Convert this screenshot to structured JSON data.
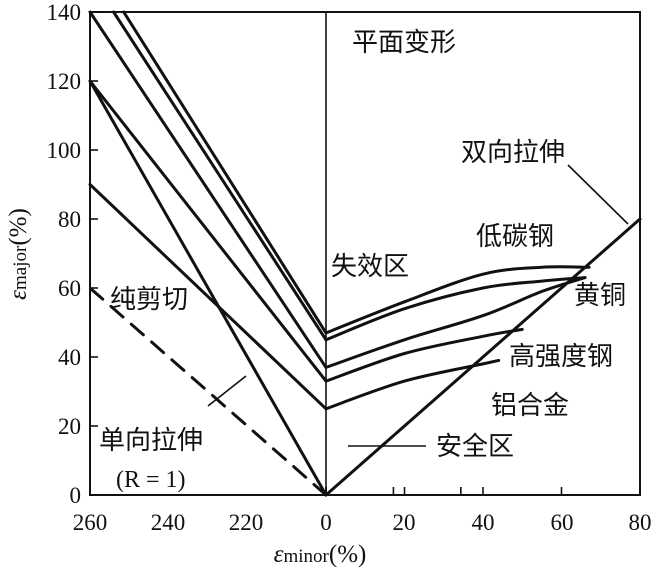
{
  "chart_data": {
    "type": "line",
    "title": "",
    "xlabel": "εminor(%)",
    "ylabel": "εmajor(%)",
    "x_ticks_left": [
      "260",
      "240",
      "220",
      "0"
    ],
    "x_ticks_right": [
      "20",
      "40",
      "60",
      "80"
    ],
    "y_ticks": [
      "0",
      "20",
      "40",
      "60",
      "80",
      "100",
      "120",
      "140"
    ],
    "ylim": [
      0,
      140
    ],
    "grid": false,
    "left_curves": [
      {
        "points": [
          [
            -60,
            140
          ],
          [
            0,
            47
          ]
        ]
      },
      {
        "points": [
          [
            -63,
            140
          ],
          [
            0,
            45
          ]
        ]
      },
      {
        "points": [
          [
            -70,
            140
          ],
          [
            0,
            37
          ]
        ]
      },
      {
        "points": [
          [
            -70,
            120
          ],
          [
            0,
            33
          ]
        ]
      },
      {
        "points": [
          [
            -70,
            90
          ],
          [
            0,
            25
          ]
        ]
      },
      {
        "points": [
          [
            -70,
            120
          ],
          [
            0,
            0
          ]
        ]
      }
    ],
    "right_curves": [
      {
        "points": [
          [
            0,
            47
          ],
          [
            20,
            56
          ],
          [
            40,
            64
          ],
          [
            55,
            66
          ],
          [
            67,
            66
          ]
        ]
      },
      {
        "points": [
          [
            0,
            45
          ],
          [
            20,
            54
          ],
          [
            40,
            60
          ],
          [
            55,
            62
          ],
          [
            66,
            63
          ]
        ]
      },
      {
        "points": [
          [
            0,
            37
          ],
          [
            20,
            45
          ],
          [
            40,
            52
          ],
          [
            55,
            59
          ],
          [
            66,
            63
          ]
        ]
      },
      {
        "points": [
          [
            0,
            33
          ],
          [
            20,
            41
          ],
          [
            40,
            46
          ],
          [
            50,
            48
          ]
        ]
      },
      {
        "points": [
          [
            0,
            25
          ],
          [
            20,
            33
          ],
          [
            40,
            38
          ],
          [
            44,
            39
          ]
        ]
      }
    ],
    "limit_line": {
      "points": [
        [
          0,
          0
        ],
        [
          80,
          80
        ]
      ]
    },
    "pure_shear_line": {
      "points": [
        [
          0,
          0
        ],
        [
          -70,
          60
        ]
      ],
      "style": "dashed"
    },
    "annotations": {
      "plane_strain": "平面变形",
      "biaxial_tension": "双向拉伸",
      "low_carbon_steel": "低碳钢",
      "failure_zone": "失效区",
      "brass": "黄铜",
      "pure_shear": "纯剪切",
      "high_strength_steel": "高强度钢",
      "aluminum_alloy": "铝合金",
      "uniaxial_tension": "单向拉伸",
      "r_value": "(R = 1)",
      "safe_zone": "安全区"
    }
  }
}
